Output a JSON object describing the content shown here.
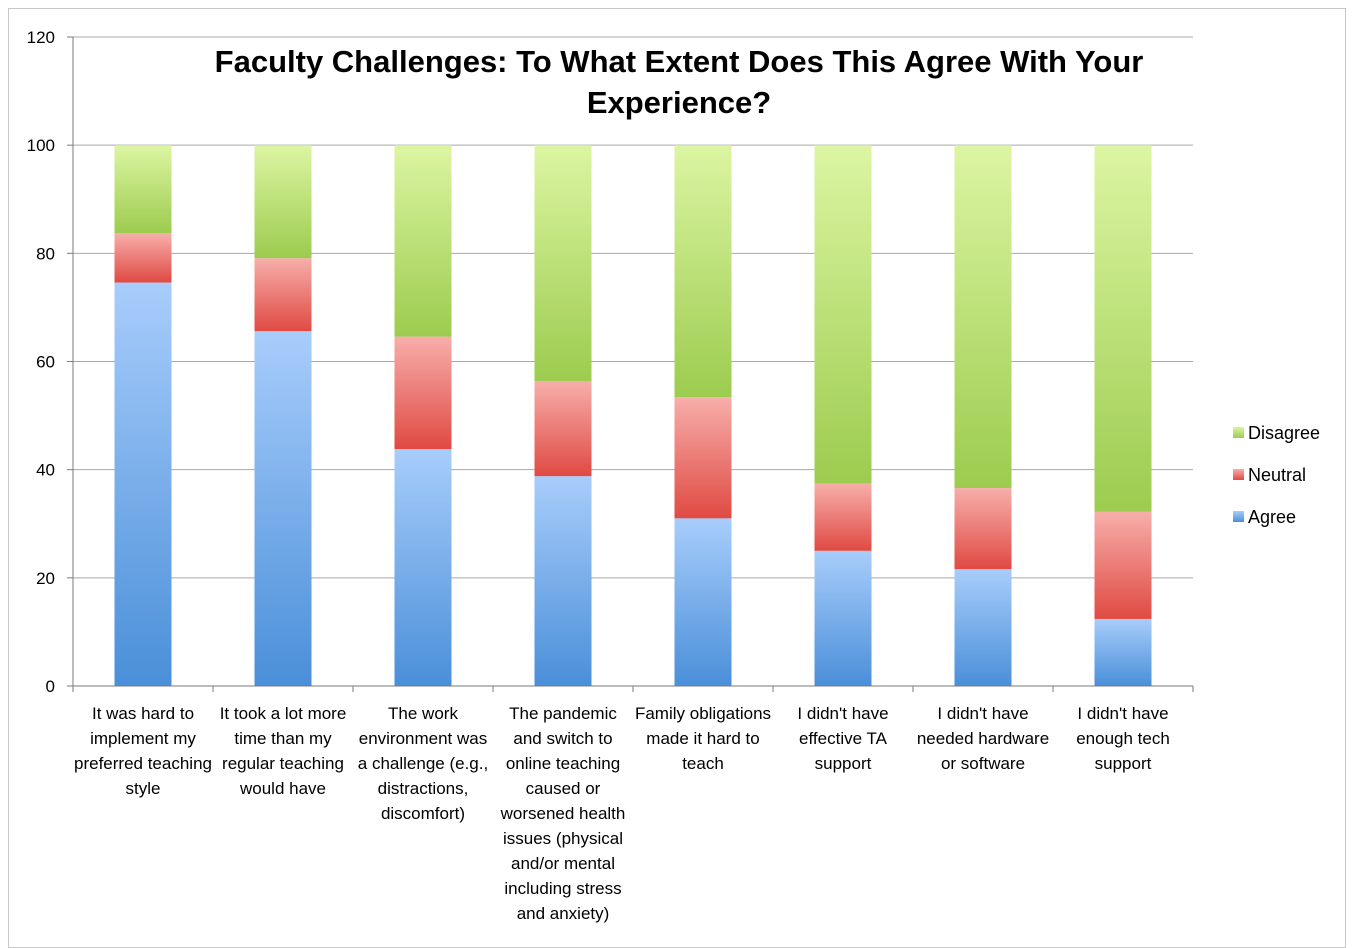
{
  "chart_data": {
    "type": "bar",
    "stacked": true,
    "title": "Faculty Challenges: To What Extent Does This Agree With Your Experience?",
    "title_lines": [
      "Faculty Challenges: To What Extent Does This Agree With Your",
      "Experience?"
    ],
    "ylim": [
      0,
      120
    ],
    "yticks": [
      0,
      20,
      40,
      60,
      80,
      100,
      120
    ],
    "grid": true,
    "legend_position": "right",
    "categories": [
      [
        "It was hard to",
        "implement my",
        "preferred teaching",
        "style"
      ],
      [
        "It took a lot more",
        "time than my",
        "regular teaching",
        "would have"
      ],
      [
        "The work",
        "environment was",
        "a challenge (e.g.,",
        "distractions,",
        "discomfort)"
      ],
      [
        "The pandemic",
        "and switch to",
        "online teaching",
        "caused or",
        "worsened health",
        "issues (physical",
        "and/or mental",
        "including stress",
        "and anxiety)"
      ],
      [
        "Family obligations",
        "made it hard to",
        "teach"
      ],
      [
        "I didn't have",
        "effective TA",
        "support"
      ],
      [
        "I didn't have",
        "needed hardware",
        "or software"
      ],
      [
        "I didn't have",
        "enough tech",
        "support"
      ]
    ],
    "series": [
      {
        "name": "Agree",
        "values": [
          74.6,
          65.6,
          43.8,
          38.8,
          31.0,
          25.0,
          21.6,
          12.4
        ],
        "colors": [
          "#4a8fd9",
          "#a8cdfb"
        ]
      },
      {
        "name": "Neutral",
        "values": [
          9.1,
          13.5,
          20.8,
          17.6,
          22.4,
          12.4,
          15.0,
          19.8
        ],
        "colors": [
          "#e04a43",
          "#f7aeaa"
        ]
      },
      {
        "name": "Disagree",
        "values": [
          16.3,
          20.9,
          35.4,
          43.6,
          46.6,
          62.6,
          63.4,
          67.8
        ],
        "colors": [
          "#9ccc4f",
          "#dcf5a2"
        ]
      }
    ],
    "legend_order": [
      "Disagree",
      "Neutral",
      "Agree"
    ]
  }
}
